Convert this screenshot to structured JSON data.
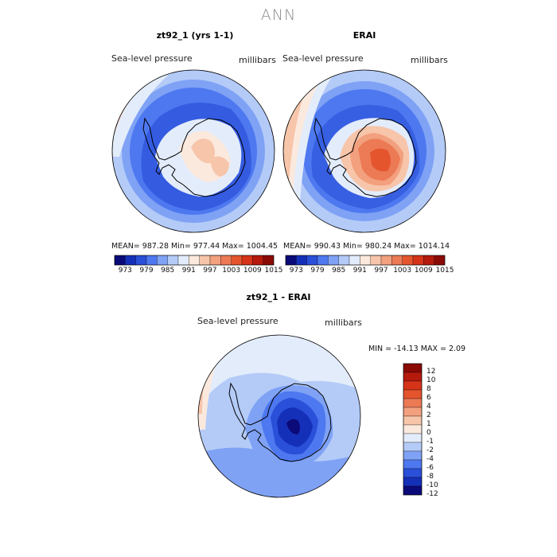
{
  "super_title": "ANN",
  "panels": [
    {
      "title": "zt92_1 (yrs 1-1)",
      "left_label": "Sea-level pressure",
      "right_label": "millibars",
      "stats": "MEAN= 987.28   Min= 977.44   Max= 1004.45"
    },
    {
      "title": "ERAI",
      "left_label": "Sea-level pressure",
      "right_label": "millibars",
      "stats": "MEAN= 990.43   Min= 980.24   Max= 1014.14"
    },
    {
      "title": "zt92_1 - ERAI",
      "left_label": "Sea-level pressure",
      "right_label": "millibars",
      "stats": "MIN = -14.13  MAX =    2.09"
    }
  ],
  "colorbar_top": {
    "colors": [
      "#0a0a78",
      "#1530b8",
      "#2a4fd8",
      "#4d78f0",
      "#7fa2f5",
      "#b4cbf8",
      "#e3ecfb",
      "#fbe9de",
      "#f7c5aa",
      "#f2a07e",
      "#ec7a55",
      "#e4552e",
      "#d53418",
      "#b51a0d",
      "#8a0a05"
    ],
    "tick_labels": [
      "973",
      "979",
      "985",
      "991",
      "997",
      "1003",
      "1009",
      "1015"
    ]
  },
  "colorbar_diff": {
    "colors": [
      "#8a0a05",
      "#b51a0d",
      "#d53418",
      "#e4552e",
      "#ec7a55",
      "#f2a07e",
      "#f7c5aa",
      "#fbe9de",
      "#e3ecfb",
      "#b4cbf8",
      "#7fa2f5",
      "#4d78f0",
      "#2a4fd8",
      "#1530b8",
      "#0a0a78"
    ],
    "tick_labels": [
      "12",
      "10",
      "8",
      "6",
      "4",
      "2",
      "1",
      "0",
      "-1",
      "-2",
      "-4",
      "-6",
      "-8",
      "-10",
      "-12"
    ]
  }
}
